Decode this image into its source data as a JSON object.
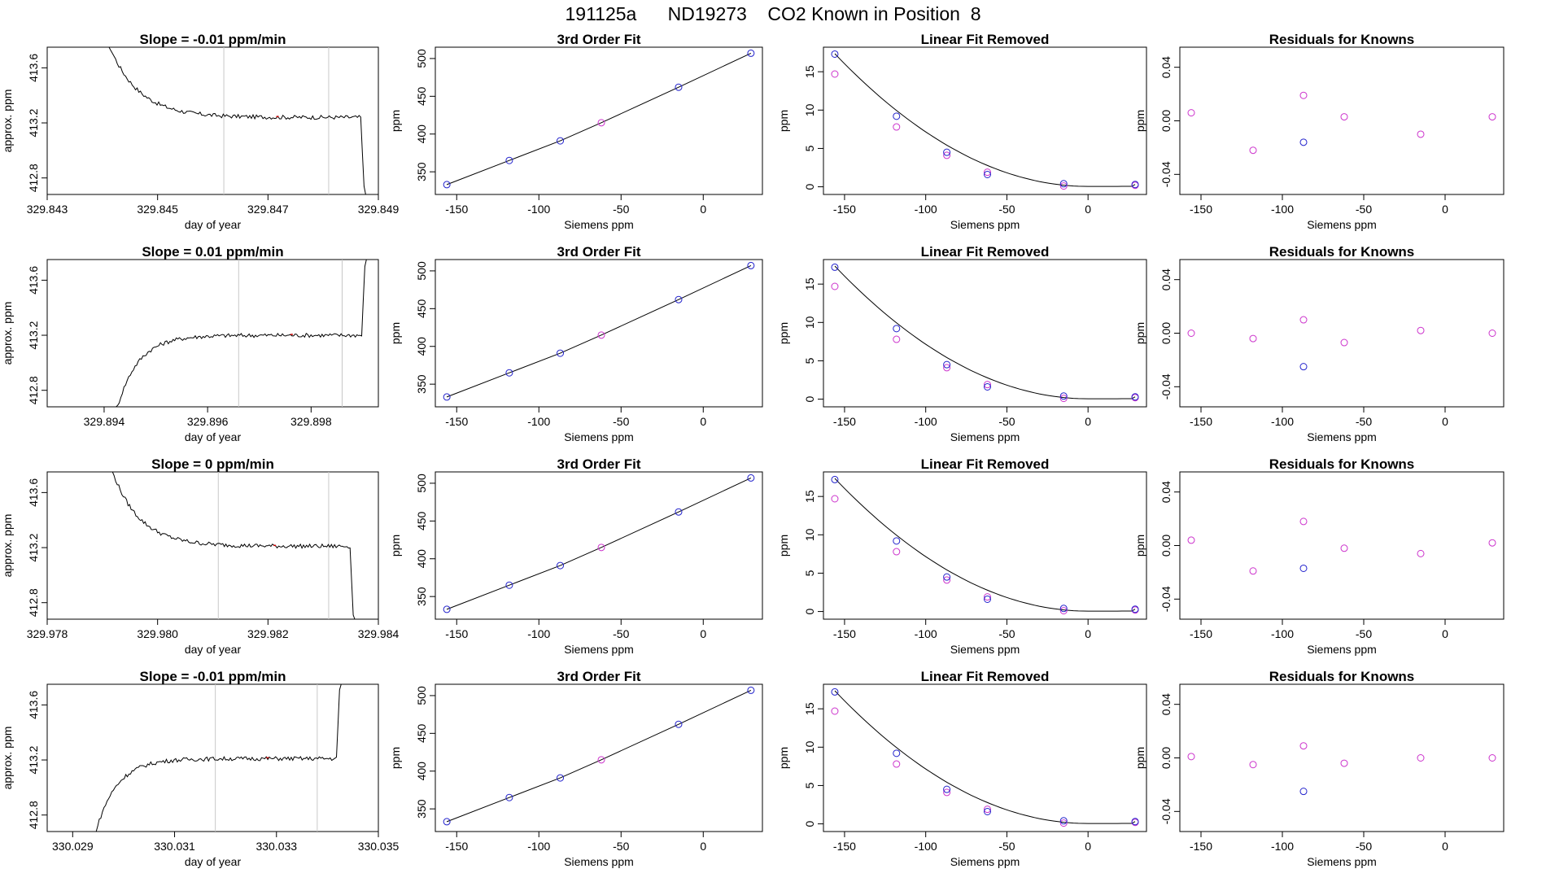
{
  "page": {
    "title": "191125a      ND19273    CO2 Known in Position  8"
  },
  "colors": {
    "line": "#000000",
    "fit_point": "#2222cc",
    "known_point": "#cc33cc",
    "marker_line": "#c8c8c8",
    "red_mark": "#cc0000"
  },
  "rows": [
    {
      "trace": {
        "title": "Slope =  -0.01  ppm/min",
        "xlabel": "day of year",
        "ylabel": "approx. ppm",
        "xlim": [
          329.843,
          329.849
        ],
        "xticks": [
          "329.843",
          "329.845",
          "329.847",
          "329.849"
        ],
        "ylim": [
          412.68,
          413.75
        ],
        "yticks": [
          "412.8",
          "413.2",
          "413.6"
        ],
        "markers": [
          329.8462,
          329.8481
        ],
        "shape": "decay",
        "xstart": 329.844,
        "xend": 329.8488,
        "plateau": 413.24,
        "start_level": 413.9
      },
      "fit": {
        "title": "3rd Order Fit",
        "xlabel": "Siemens ppm",
        "ylabel": "ppm",
        "xticks": [
          "-150",
          "-100",
          "-50",
          "0"
        ],
        "yticks": [
          "350",
          "400",
          "450",
          "500"
        ],
        "x": [
          -156,
          -118,
          -87,
          -62,
          -15,
          29
        ],
        "y": [
          333,
          365,
          391,
          415,
          462,
          507
        ]
      },
      "linres": {
        "title": "Linear Fit Removed",
        "xlabel": "Siemens ppm",
        "ylabel": "ppm",
        "xticks": [
          "-150",
          "-100",
          "-50",
          "0"
        ],
        "yticks": [
          "0",
          "5",
          "10",
          "15"
        ],
        "blue_x": [
          -156,
          -118,
          -87,
          -62,
          -15,
          29
        ],
        "blue_y": [
          17.3,
          9.2,
          4.5,
          1.6,
          0.4,
          0.3
        ],
        "pink_x": [
          -156,
          -118,
          -87,
          -62,
          -15,
          29
        ],
        "pink_y": [
          14.7,
          7.8,
          4.1,
          1.9,
          0.1,
          0.2
        ]
      },
      "resid": {
        "title": "Residuals for Knowns",
        "xlabel": "Siemens ppm",
        "ylabel": "ppm",
        "xticks": [
          "-150",
          "-100",
          "-50",
          "0"
        ],
        "yticks": [
          "-0.04",
          "0.00",
          "0.04"
        ],
        "pink_x": [
          -156,
          -118,
          -87,
          -62,
          -15,
          29
        ],
        "pink_y": [
          0.006,
          -0.022,
          0.019,
          0.003,
          -0.01,
          0.003
        ],
        "blue_x": [
          -87
        ],
        "blue_y": [
          -0.016
        ]
      }
    },
    {
      "trace": {
        "title": "Slope =  0.01  ppm/min",
        "xlabel": "day of year",
        "ylabel": "approx. ppm",
        "xlim": [
          329.8929,
          329.8993
        ],
        "xticks": [
          "329.894",
          "329.896",
          "329.898"
        ],
        "ylim": [
          412.68,
          413.75
        ],
        "yticks": [
          "412.8",
          "413.2",
          "413.6"
        ],
        "markers": [
          329.8966,
          329.8986
        ],
        "shape": "rise",
        "xstart": 329.8942,
        "xend": 329.8991,
        "plateau": 413.2,
        "start_level": 412.6
      },
      "fit": {
        "title": "3rd Order Fit",
        "xlabel": "Siemens ppm",
        "ylabel": "ppm",
        "xticks": [
          "-150",
          "-100",
          "-50",
          "0"
        ],
        "yticks": [
          "350",
          "400",
          "450",
          "500"
        ],
        "x": [
          -156,
          -118,
          -87,
          -62,
          -15,
          29
        ],
        "y": [
          333,
          365,
          391,
          415,
          462,
          507
        ]
      },
      "linres": {
        "title": "Linear Fit Removed",
        "xlabel": "Siemens ppm",
        "ylabel": "ppm",
        "xticks": [
          "-150",
          "-100",
          "-50",
          "0"
        ],
        "yticks": [
          "0",
          "5",
          "10",
          "15"
        ],
        "blue_x": [
          -156,
          -118,
          -87,
          -62,
          -15,
          29
        ],
        "blue_y": [
          17.2,
          9.2,
          4.5,
          1.6,
          0.4,
          0.3
        ],
        "pink_x": [
          -156,
          -118,
          -87,
          -62,
          -15,
          29
        ],
        "pink_y": [
          14.7,
          7.8,
          4.1,
          1.9,
          0.1,
          0.2
        ]
      },
      "resid": {
        "title": "Residuals for Knowns",
        "xlabel": "Siemens ppm",
        "ylabel": "ppm",
        "xticks": [
          "-150",
          "-100",
          "-50",
          "0"
        ],
        "yticks": [
          "-0.04",
          "0.00",
          "0.04"
        ],
        "pink_x": [
          -156,
          -118,
          -87,
          -62,
          -15,
          29
        ],
        "pink_y": [
          0.0,
          -0.004,
          0.01,
          -0.007,
          0.002,
          0.0
        ],
        "blue_x": [
          -87
        ],
        "blue_y": [
          -0.025
        ]
      }
    },
    {
      "trace": {
        "title": "Slope =  0  ppm/min",
        "xlabel": "day of year",
        "ylabel": "approx. ppm",
        "xlim": [
          329.978,
          329.984
        ],
        "xticks": [
          "329.978",
          "329.980",
          "329.982",
          "329.984"
        ],
        "ylim": [
          412.68,
          413.75
        ],
        "yticks": [
          "412.8",
          "413.2",
          "413.6"
        ],
        "markers": [
          329.9811,
          329.9831
        ],
        "shape": "decay",
        "xstart": 329.9791,
        "xend": 329.9836,
        "plateau": 413.21,
        "start_level": 413.85
      },
      "fit": {
        "title": "3rd Order Fit",
        "xlabel": "Siemens ppm",
        "ylabel": "ppm",
        "xticks": [
          "-150",
          "-100",
          "-50",
          "0"
        ],
        "yticks": [
          "350",
          "400",
          "450",
          "500"
        ],
        "x": [
          -156,
          -118,
          -87,
          -62,
          -15,
          29
        ],
        "y": [
          333,
          365,
          391,
          415,
          462,
          507
        ]
      },
      "linres": {
        "title": "Linear Fit Removed",
        "xlabel": "Siemens ppm",
        "ylabel": "ppm",
        "xticks": [
          "-150",
          "-100",
          "-50",
          "0"
        ],
        "yticks": [
          "0",
          "5",
          "10",
          "15"
        ],
        "blue_x": [
          -156,
          -118,
          -87,
          -62,
          -15,
          29
        ],
        "blue_y": [
          17.2,
          9.2,
          4.5,
          1.6,
          0.4,
          0.3
        ],
        "pink_x": [
          -156,
          -118,
          -87,
          -62,
          -15,
          29
        ],
        "pink_y": [
          14.7,
          7.8,
          4.1,
          1.9,
          0.1,
          0.2
        ]
      },
      "resid": {
        "title": "Residuals for Knowns",
        "xlabel": "Siemens ppm",
        "ylabel": "ppm",
        "xticks": [
          "-150",
          "-100",
          "-50",
          "0"
        ],
        "yticks": [
          "-0.04",
          "0.00",
          "0.04"
        ],
        "pink_x": [
          -156,
          -118,
          -87,
          -62,
          -15,
          29
        ],
        "pink_y": [
          0.004,
          -0.019,
          0.018,
          -0.002,
          -0.006,
          0.002
        ],
        "blue_x": [
          -87
        ],
        "blue_y": [
          -0.017
        ]
      }
    },
    {
      "trace": {
        "title": "Slope =  -0.01  ppm/min",
        "xlabel": "day of year",
        "ylabel": "approx. ppm",
        "xlim": [
          330.0285,
          330.035
        ],
        "xticks": [
          "330.029",
          "330.031",
          "330.033",
          "330.035"
        ],
        "ylim": [
          412.68,
          413.75
        ],
        "yticks": [
          "412.8",
          "413.2",
          "413.6"
        ],
        "markers": [
          330.0318,
          330.0338
        ],
        "shape": "rise",
        "xstart": 330.0294,
        "xend": 330.0343,
        "plateau": 413.21,
        "start_level": 412.6
      },
      "fit": {
        "title": "3rd Order Fit",
        "xlabel": "Siemens ppm",
        "ylabel": "ppm",
        "xticks": [
          "-150",
          "-100",
          "-50",
          "0"
        ],
        "yticks": [
          "350",
          "400",
          "450",
          "500"
        ],
        "x": [
          -156,
          -118,
          -87,
          -62,
          -15,
          29
        ],
        "y": [
          333,
          365,
          391,
          415,
          462,
          507
        ]
      },
      "linres": {
        "title": "Linear Fit Removed",
        "xlabel": "Siemens ppm",
        "ylabel": "ppm",
        "xticks": [
          "-150",
          "-100",
          "-50",
          "0"
        ],
        "yticks": [
          "0",
          "5",
          "10",
          "15"
        ],
        "blue_x": [
          -156,
          -118,
          -87,
          -62,
          -15,
          29
        ],
        "blue_y": [
          17.2,
          9.2,
          4.5,
          1.6,
          0.4,
          0.3
        ],
        "pink_x": [
          -156,
          -118,
          -87,
          -62,
          -15,
          29
        ],
        "pink_y": [
          14.7,
          7.8,
          4.1,
          1.9,
          0.1,
          0.2
        ]
      },
      "resid": {
        "title": "Residuals for Knowns",
        "xlabel": "Siemens ppm",
        "ylabel": "ppm",
        "xticks": [
          "-150",
          "-100",
          "-50",
          "0"
        ],
        "yticks": [
          "-0.04",
          "0.00",
          "0.04"
        ],
        "pink_x": [
          -156,
          -118,
          -87,
          -62,
          -15,
          29
        ],
        "pink_y": [
          0.001,
          -0.005,
          0.009,
          -0.004,
          0.0,
          0.0
        ],
        "blue_x": [
          -87
        ],
        "blue_y": [
          -0.025
        ]
      }
    }
  ],
  "chart_data": [
    {
      "type": "line",
      "title": "Slope =  -0.01  ppm/min",
      "xlabel": "day of year",
      "ylabel": "approx. ppm",
      "xlim": [
        329.843,
        329.849
      ],
      "ylim": [
        412.68,
        413.75
      ]
    },
    {
      "type": "scatter",
      "title": "3rd Order Fit",
      "xlabel": "Siemens ppm",
      "ylabel": "ppm",
      "x": [
        -156,
        -118,
        -87,
        -62,
        -15,
        29
      ],
      "y": [
        333,
        365,
        391,
        415,
        462,
        507
      ]
    },
    {
      "type": "scatter",
      "title": "Linear Fit Removed",
      "xlabel": "Siemens ppm",
      "ylabel": "ppm",
      "x": [
        -156,
        -118,
        -87,
        -62,
        -15,
        29
      ],
      "y": [
        17.3,
        9.2,
        4.5,
        1.6,
        0.4,
        0.3
      ]
    },
    {
      "type": "scatter",
      "title": "Residuals for Knowns",
      "xlabel": "Siemens ppm",
      "ylabel": "ppm",
      "x": [
        -156,
        -118,
        -87,
        -62,
        -15,
        29
      ],
      "y": [
        0.006,
        -0.022,
        0.019,
        0.003,
        -0.01,
        0.003
      ]
    },
    {
      "type": "line",
      "title": "Slope =  0.01  ppm/min",
      "xlabel": "day of year",
      "ylabel": "approx. ppm",
      "xlim": [
        329.8929,
        329.8993
      ],
      "ylim": [
        412.68,
        413.75
      ]
    },
    {
      "type": "scatter",
      "title": "3rd Order Fit",
      "xlabel": "Siemens ppm",
      "ylabel": "ppm",
      "x": [
        -156,
        -118,
        -87,
        -62,
        -15,
        29
      ],
      "y": [
        333,
        365,
        391,
        415,
        462,
        507
      ]
    },
    {
      "type": "scatter",
      "title": "Linear Fit Removed",
      "xlabel": "Siemens ppm",
      "ylabel": "ppm",
      "x": [
        -156,
        -118,
        -87,
        -62,
        -15,
        29
      ],
      "y": [
        17.2,
        9.2,
        4.5,
        1.6,
        0.4,
        0.3
      ]
    },
    {
      "type": "scatter",
      "title": "Residuals for Knowns",
      "xlabel": "Siemens ppm",
      "ylabel": "ppm",
      "x": [
        -156,
        -118,
        -87,
        -62,
        -15,
        29
      ],
      "y": [
        0.0,
        -0.004,
        0.01,
        -0.007,
        0.002,
        0.0
      ]
    },
    {
      "type": "line",
      "title": "Slope =  0  ppm/min",
      "xlabel": "day of year",
      "ylabel": "approx. ppm",
      "xlim": [
        329.978,
        329.984
      ],
      "ylim": [
        412.68,
        413.75
      ]
    },
    {
      "type": "scatter",
      "title": "3rd Order Fit",
      "xlabel": "Siemens ppm",
      "ylabel": "ppm",
      "x": [
        -156,
        -118,
        -87,
        -62,
        -15,
        29
      ],
      "y": [
        333,
        365,
        391,
        415,
        462,
        507
      ]
    },
    {
      "type": "scatter",
      "title": "Linear Fit Removed",
      "xlabel": "Siemens ppm",
      "ylabel": "ppm",
      "x": [
        -156,
        -118,
        -87,
        -62,
        -15,
        29
      ],
      "y": [
        17.2,
        9.2,
        4.5,
        1.6,
        0.4,
        0.3
      ]
    },
    {
      "type": "scatter",
      "title": "Residuals for Knowns",
      "xlabel": "Siemens ppm",
      "ylabel": "ppm",
      "x": [
        -156,
        -118,
        -87,
        -62,
        -15,
        29
      ],
      "y": [
        0.004,
        -0.019,
        0.018,
        -0.002,
        -0.006,
        0.002
      ]
    },
    {
      "type": "line",
      "title": "Slope =  -0.01  ppm/min",
      "xlabel": "day of year",
      "ylabel": "approx. ppm",
      "xlim": [
        330.0285,
        330.035
      ],
      "ylim": [
        412.68,
        413.75
      ]
    },
    {
      "type": "scatter",
      "title": "3rd Order Fit",
      "xlabel": "Siemens ppm",
      "ylabel": "ppm",
      "x": [
        -156,
        -118,
        -87,
        -62,
        -15,
        29
      ],
      "y": [
        333,
        365,
        391,
        415,
        462,
        507
      ]
    },
    {
      "type": "scatter",
      "title": "Linear Fit Removed",
      "xlabel": "Siemens ppm",
      "ylabel": "ppm",
      "x": [
        -156,
        -118,
        -87,
        -62,
        -15,
        29
      ],
      "y": [
        17.2,
        9.2,
        4.5,
        1.6,
        0.4,
        0.3
      ]
    },
    {
      "type": "scatter",
      "title": "Residuals for Knowns",
      "xlabel": "Siemens ppm",
      "ylabel": "ppm",
      "x": [
        -156,
        -118,
        -87,
        -62,
        -15,
        29
      ],
      "y": [
        0.001,
        -0.005,
        0.009,
        -0.004,
        0.0,
        0.0
      ]
    }
  ]
}
